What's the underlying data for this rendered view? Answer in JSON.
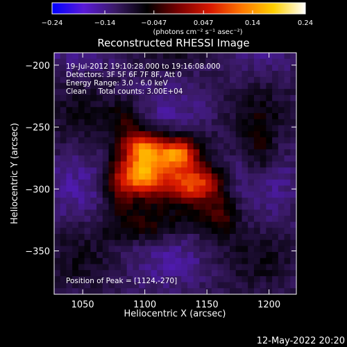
{
  "chart_data": {
    "type": "heatmap",
    "title": "Reconstructed RHESSI Image",
    "xlabel": "Heliocentric X (arcsec)",
    "ylabel": "Heliocentric Y (arcsec)",
    "xlim": [
      1027,
      1222
    ],
    "ylim": [
      -385,
      -190
    ],
    "xticks": [
      1050,
      1100,
      1150,
      1200
    ],
    "yticks": [
      -200,
      -250,
      -300,
      -350
    ],
    "xtick_labels": [
      "1050",
      "1100",
      "1150",
      "1200"
    ],
    "ytick_labels": [
      "−200",
      "−250",
      "−300",
      "−350"
    ],
    "grid": false,
    "colorbar": {
      "placement": "top",
      "range": [
        -0.24,
        0.24
      ],
      "tick_labels": [
        "−0.24",
        "−0.14",
        "−0.047",
        "0.047",
        "0.14",
        "0.24"
      ],
      "ticks": [
        -0.24,
        -0.14,
        -0.047,
        0.047,
        0.14,
        0.24
      ],
      "units": "(photons cm⁻² s⁻¹ asec⁻²)",
      "stops": [
        "#0000ff",
        "#5a1ad8",
        "#3a1a66",
        "#000000",
        "#7a0000",
        "#d81800",
        "#ff7800",
        "#ffd000",
        "#ffffff"
      ]
    },
    "annotations": [
      "19-Jul-2012 19:10:28.000 to 19:16:08.000",
      "Detectors: 3F 5F 6F 7F 8F, Att 0",
      "Energy Range: 3.0 - 6.0 keV",
      "Clean     Total counts: 3.00E+04"
    ],
    "peak_label": "Position of Peak = [1124,-270]",
    "peak": [
      1124,
      -270
    ],
    "sources": [
      {
        "x": 1099,
        "y": -268,
        "sx": 11,
        "sy": 9,
        "amp": 0.19
      },
      {
        "x": 1097,
        "y": -290,
        "sx": 12,
        "sy": 9,
        "amp": 0.17
      },
      {
        "x": 1127,
        "y": -271,
        "sx": 10,
        "sy": 8,
        "amp": 0.16
      },
      {
        "x": 1142,
        "y": -296,
        "sx": 13,
        "sy": 9,
        "amp": 0.14
      },
      {
        "x": 1118,
        "y": -282,
        "sx": 22,
        "sy": 18,
        "amp": 0.1
      },
      {
        "x": 1080,
        "y": -298,
        "sx": 10,
        "sy": 16,
        "amp": 0.08
      },
      {
        "x": 1160,
        "y": -320,
        "sx": 12,
        "sy": 14,
        "amp": 0.08
      },
      {
        "x": 1192,
        "y": -270,
        "sx": 8,
        "sy": 20,
        "amp": 0.05
      },
      {
        "x": 1100,
        "y": -330,
        "sx": 22,
        "sy": 10,
        "amp": 0.06
      },
      {
        "x": 1085,
        "y": -245,
        "sx": 10,
        "sy": 12,
        "amp": 0.06
      }
    ],
    "background": -0.11
  },
  "footer": {
    "timestamp": "12-May-2022 20:20"
  }
}
